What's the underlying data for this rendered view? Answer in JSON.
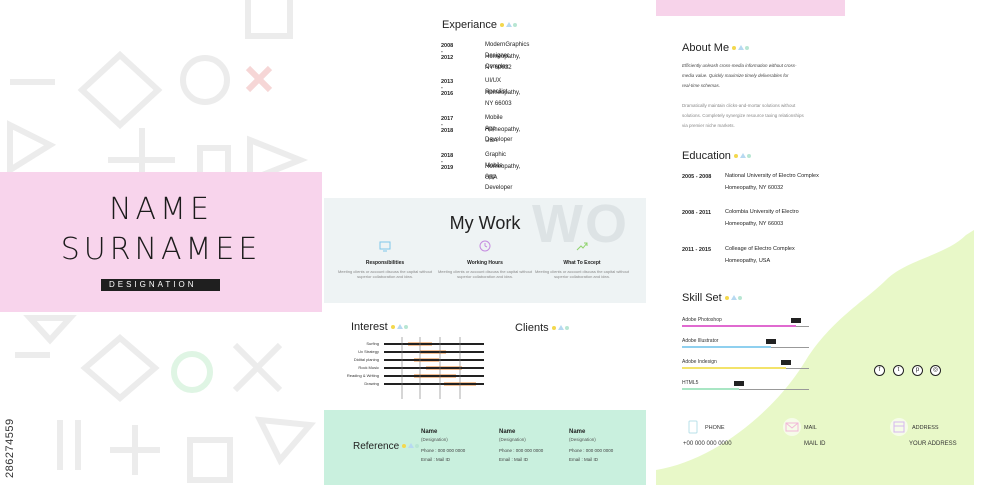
{
  "left": {
    "name_line1": "NAME",
    "name_line2": "SURNAMEE",
    "designation": "DESIGNATION",
    "stock_id": "286274559"
  },
  "experience": {
    "title": "Experiance",
    "items": [
      {
        "years": "2008 - 2012",
        "role": "ModernGraphics Designer Complex",
        "place": "Homeopathy, NY 60032"
      },
      {
        "years": "2013 - 2016",
        "role": "UI/UX Specilist",
        "place": "Homeopathy, NY 66003"
      },
      {
        "years": "2017 - 2018",
        "role": "Mobile App Developer",
        "place": "Homeopathy, USA"
      },
      {
        "years": "2018 - 2019",
        "role": "Graphic Mobile App Developer",
        "place": "Homeopathy, USA"
      }
    ]
  },
  "work": {
    "title": "My Work",
    "watermark": "WO",
    "columns": [
      {
        "icon": "monitor-icon",
        "heading": "Responsibilities",
        "desc": "Meeting clients or account discuss the capital without superior collaboration and idea."
      },
      {
        "icon": "clock-icon",
        "heading": "Working Hours",
        "desc": "Meeting clients or account discuss the capital without superior collaboration and idea."
      },
      {
        "icon": "growth-arrow-icon",
        "heading": "What To Except",
        "desc": "Meeting clients or account discuss the capital without superior collaboration and idea."
      }
    ]
  },
  "interest": {
    "title": "Interest",
    "items": [
      {
        "label": "Surfing",
        "fill_from": 0.24,
        "fill_to": 0.48
      },
      {
        "label": "Ux Strategy",
        "fill_from": 0.36,
        "fill_to": 0.62
      },
      {
        "label": "Didital planing",
        "fill_from": 0.3,
        "fill_to": 0.55
      },
      {
        "label": "Rock Music",
        "fill_from": 0.42,
        "fill_to": 0.78
      },
      {
        "label": "Reading & Writing",
        "fill_from": 0.3,
        "fill_to": 0.72
      },
      {
        "label": "Drawing",
        "fill_from": 0.6,
        "fill_to": 0.92
      }
    ]
  },
  "clients": {
    "title": "Clients"
  },
  "reference": {
    "title": "Reference",
    "people": [
      {
        "name": "Name",
        "sub": "(Designation)",
        "phone": "Phone : 000 000 0000",
        "email": "Email : Mail ID"
      },
      {
        "name": "Name",
        "sub": "(Designation)",
        "phone": "Phone : 000 000 0000",
        "email": "Email : Mail ID"
      },
      {
        "name": "Name",
        "sub": "(Designation)",
        "phone": "Phone : 000 000 0000",
        "email": "Email : Mail ID"
      }
    ]
  },
  "about": {
    "title": "About Me",
    "para1_line1": "Efficiently unleash cross-media information without cross-",
    "para1_line2": "media value. Quickly maximize timely deliverables for",
    "para1_line3": "real-time schemas.",
    "para2_line1": "Dramatically maintain clicks-and-mortar solutions without",
    "para2_line2": "solutions. Completely synergize resource taxing relationships",
    "para2_line3": "via premier niche markets."
  },
  "education": {
    "title": "Education",
    "items": [
      {
        "years": "2005 - 2008",
        "school": "National University of Electro Complex",
        "place": "Homeopathy, NY 60032"
      },
      {
        "years": "2008 - 2011",
        "school": "Colombia University of Electro",
        "place": "Homeopathy, NY 66003"
      },
      {
        "years": "2011 - 2015",
        "school": "Colleage of Electro Complex",
        "place": "Homeopathy, USA"
      }
    ]
  },
  "skills": {
    "title": "Skill Set",
    "items": [
      {
        "name": "Adobe Photoshop",
        "level": 0.9,
        "color": "#e06ad0"
      },
      {
        "name": "Adobe Illustrator",
        "level": 0.7,
        "color": "#8fd0ef"
      },
      {
        "name": "Adobe Indesign",
        "level": 0.82,
        "color": "#f3e36a"
      },
      {
        "name": "HTML5",
        "level": 0.45,
        "color": "#a9e6c4"
      }
    ]
  },
  "social": [
    "facebook-icon",
    "twitter-icon",
    "pinterest-icon",
    "instagram-icon"
  ],
  "contact": {
    "phone_label": "PHONE",
    "phone_value": "+00 000 000 0000",
    "mail_label": "MAIL",
    "mail_value": "MAIL ID",
    "address_label": "ADDRESS",
    "address_value": "YOUR ADDRESS"
  },
  "colors": {
    "pink": "#f8d4ec",
    "mint": "#c9f0de",
    "lime": "#e8f8c8",
    "work_bg": "#eef3f4"
  }
}
